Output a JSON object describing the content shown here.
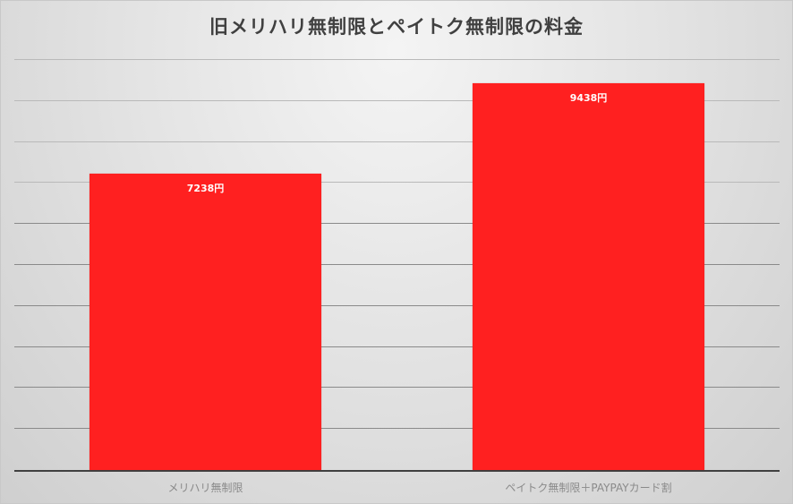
{
  "chart_data": {
    "type": "bar",
    "title": "旧メリハリ無制限とペイトク無制限の料金",
    "categories": [
      "メリハリ無制限",
      "ペイトク無制限＋PAYPAYカード割"
    ],
    "values": [
      7238,
      9438
    ],
    "data_labels": [
      "7238円",
      "9438円"
    ],
    "xlabel": "",
    "ylabel": "",
    "ylim": [
      0,
      10000
    ],
    "grid": true,
    "gridline_interval": 1000,
    "legend": "none",
    "y_tick_labels_visible": false,
    "bar_color": "#ff2020"
  }
}
